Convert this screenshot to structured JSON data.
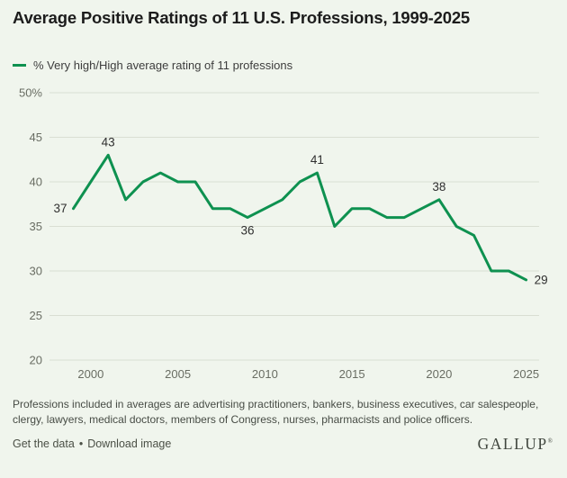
{
  "header": {
    "title": "Average Positive Ratings of 11 U.S. Professions, 1999-2025"
  },
  "legend": {
    "label": "% Very high/High average rating of 11 professions",
    "swatch_color": "#0e9150"
  },
  "chart_data": {
    "type": "line",
    "title": "Average Positive Ratings of 11 U.S. Professions, 1999-2025",
    "series": [
      {
        "name": "% Very high/High average rating of 11 professions",
        "x": [
          1999,
          2000,
          2001,
          2002,
          2003,
          2004,
          2005,
          2006,
          2007,
          2008,
          2009,
          2010,
          2011,
          2012,
          2013,
          2014,
          2015,
          2016,
          2017,
          2018,
          2019,
          2020,
          2021,
          2022,
          2023,
          2024,
          2025
        ],
        "values": [
          37,
          40,
          43,
          38,
          40,
          41,
          40,
          40,
          37,
          37,
          36,
          37,
          38,
          40,
          41,
          35,
          37,
          37,
          36,
          36,
          37,
          38,
          35,
          34,
          30,
          30,
          29
        ]
      }
    ],
    "xlabel": "",
    "ylabel": "",
    "xlim": [
      1999,
      2025
    ],
    "ylim": [
      20,
      50
    ],
    "xticks": [
      {
        "label": "2000",
        "value": 2000
      },
      {
        "label": "2005",
        "value": 2005
      },
      {
        "label": "2010",
        "value": 2010
      },
      {
        "label": "2015",
        "value": 2015
      },
      {
        "label": "2020",
        "value": 2020
      },
      {
        "label": "2025",
        "value": 2025
      }
    ],
    "yticks": [
      {
        "label": "50%",
        "value": 50
      },
      {
        "label": "45",
        "value": 45
      },
      {
        "label": "40",
        "value": 40
      },
      {
        "label": "35",
        "value": 35
      },
      {
        "label": "30",
        "value": 30
      },
      {
        "label": "25",
        "value": 25
      },
      {
        "label": "20",
        "value": 20
      }
    ],
    "grid": true,
    "legend_position": "top-left",
    "line_color": "#0e9150",
    "grid_color": "#d9ded3",
    "point_labels": [
      {
        "year": 1999,
        "label": "37",
        "value": 37,
        "position": "left"
      },
      {
        "year": 2001,
        "label": "43",
        "value": 43,
        "position": "top"
      },
      {
        "year": 2009,
        "label": "36",
        "value": 36,
        "position": "bottom"
      },
      {
        "year": 2013,
        "label": "41",
        "value": 41,
        "position": "top"
      },
      {
        "year": 2020,
        "label": "38",
        "value": 38,
        "position": "top"
      },
      {
        "year": 2025,
        "label": "29",
        "value": 29,
        "position": "right"
      }
    ]
  },
  "footnote": "Professions included in averages are advertising practitioners, bankers, business executives, car salespeople, clergy, lawyers, medical doctors, members of Congress, nurses, pharmacists and police officers.",
  "footer": {
    "link_get_data": "Get the data",
    "separator": "•",
    "link_download": "Download image",
    "logo": "GALLUP",
    "logo_mark": "®"
  }
}
